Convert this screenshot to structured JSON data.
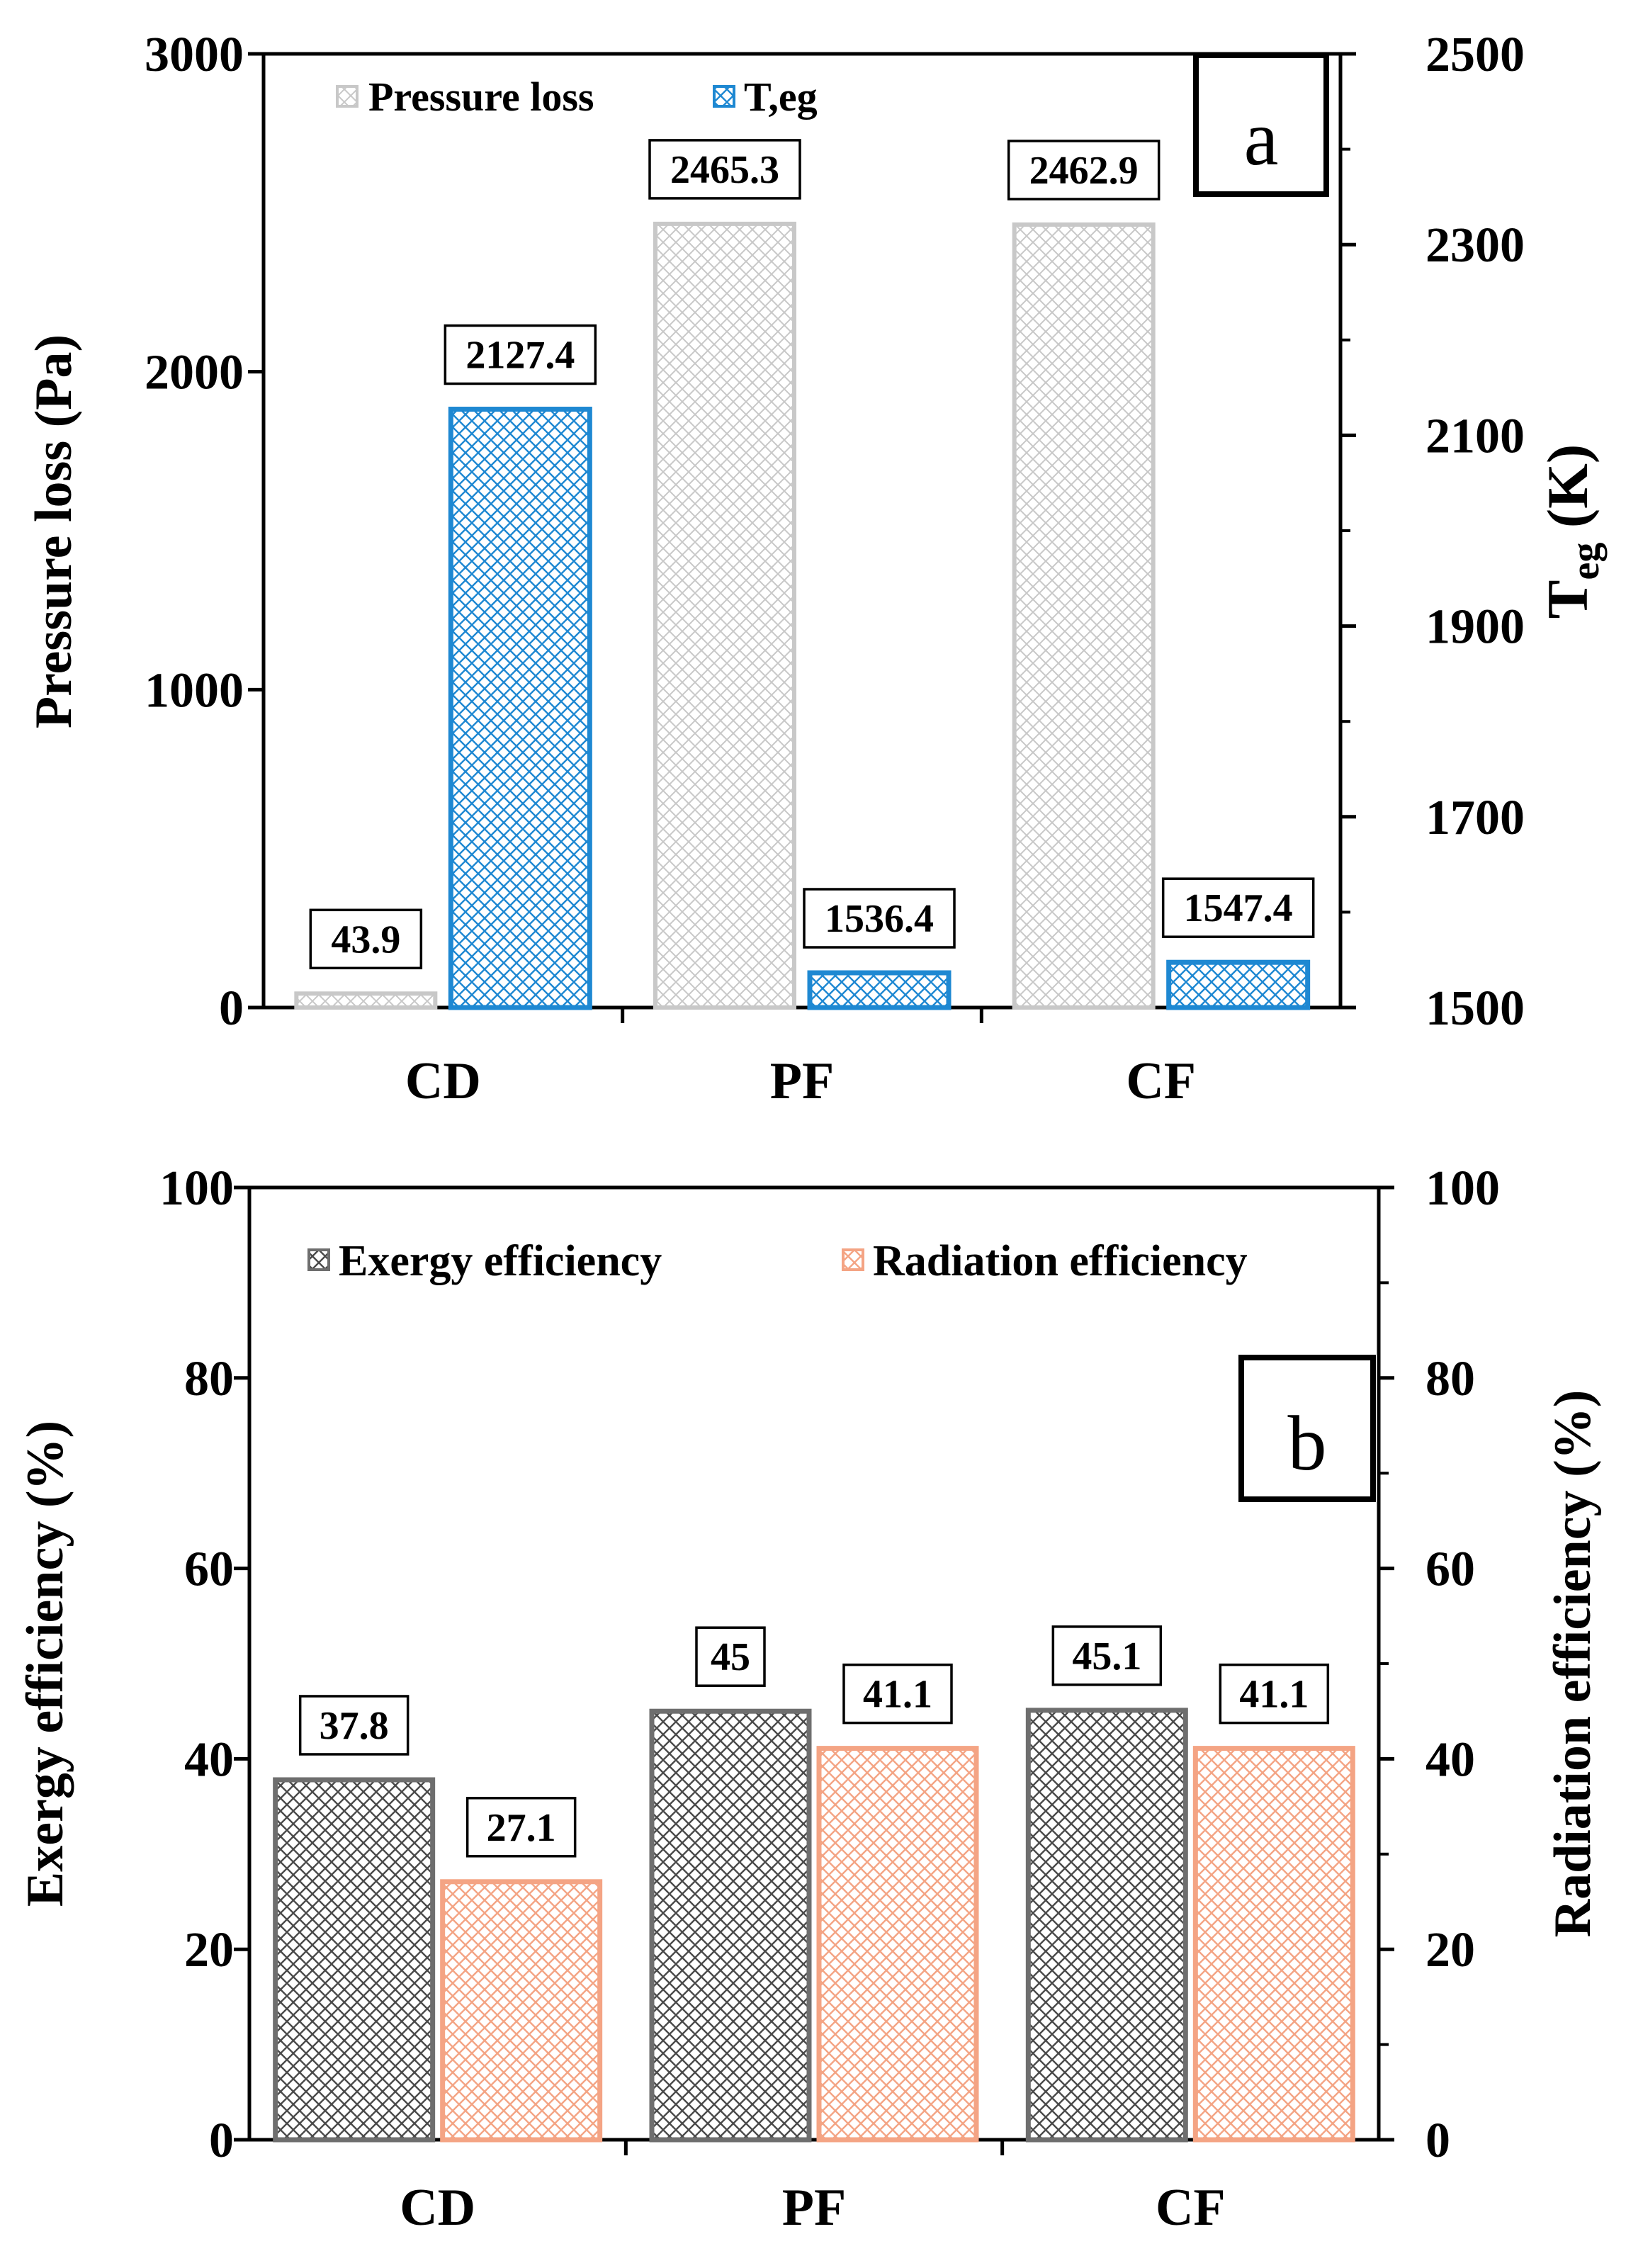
{
  "chart_data": [
    {
      "panel": "a",
      "type": "bar",
      "panel_label": "a",
      "categories": [
        "CD",
        "PF",
        "CF"
      ],
      "series": [
        {
          "name": "Pressure loss",
          "axis": "left",
          "values": [
            43.9,
            2465.3,
            2462.9
          ],
          "labels": [
            "43.9",
            "2465.3",
            "2462.9"
          ]
        },
        {
          "name": "T,eg",
          "axis": "right",
          "values": [
            2127.4,
            1536.4,
            1547.4
          ],
          "labels": [
            "2127.4",
            "1536.4",
            "1547.4"
          ]
        }
      ],
      "ylabel": "Pressure loss (Pa)",
      "y2label_main": "T",
      "y2label_sub": "eg",
      "y2label_unit": " (K)",
      "ylim": [
        0,
        3000
      ],
      "y2lim": [
        1500,
        2500
      ],
      "yticks": [
        "0",
        "1000",
        "2000",
        "3000"
      ],
      "y2ticks": [
        "1500",
        "1700",
        "1900",
        "2100",
        "2300",
        "2500"
      ],
      "legend": [
        "Pressure loss",
        "T,eg"
      ],
      "legend_position": "top-left"
    },
    {
      "panel": "b",
      "type": "bar",
      "panel_label": "b",
      "categories": [
        "CD",
        "PF",
        "CF"
      ],
      "series": [
        {
          "name": "Exergy efficiency",
          "axis": "left",
          "values": [
            37.8,
            45,
            45.1
          ],
          "labels": [
            "37.8",
            "45",
            "45.1"
          ]
        },
        {
          "name": "Radiation efficiency",
          "axis": "right",
          "values": [
            27.1,
            41.1,
            41.1
          ],
          "labels": [
            "27.1",
            "41.1",
            "41.1"
          ]
        }
      ],
      "ylabel": "Exergy efficiency (%)",
      "y2label": "Radiation efficiency (%)",
      "ylim": [
        0,
        100
      ],
      "y2lim": [
        0,
        100
      ],
      "yticks": [
        "0",
        "20",
        "40",
        "60",
        "80",
        "100"
      ],
      "y2ticks": [
        "0",
        "20",
        "40",
        "60",
        "80",
        "100"
      ],
      "legend": [
        "Exergy efficiency",
        "Radiation efficiency"
      ],
      "legend_position": "top"
    }
  ],
  "colors": {
    "pressure_loss": "#c8c8c8",
    "t_eg": "#1e88d2",
    "exergy": "#6e6e6e",
    "radiation": "#f4a484"
  }
}
